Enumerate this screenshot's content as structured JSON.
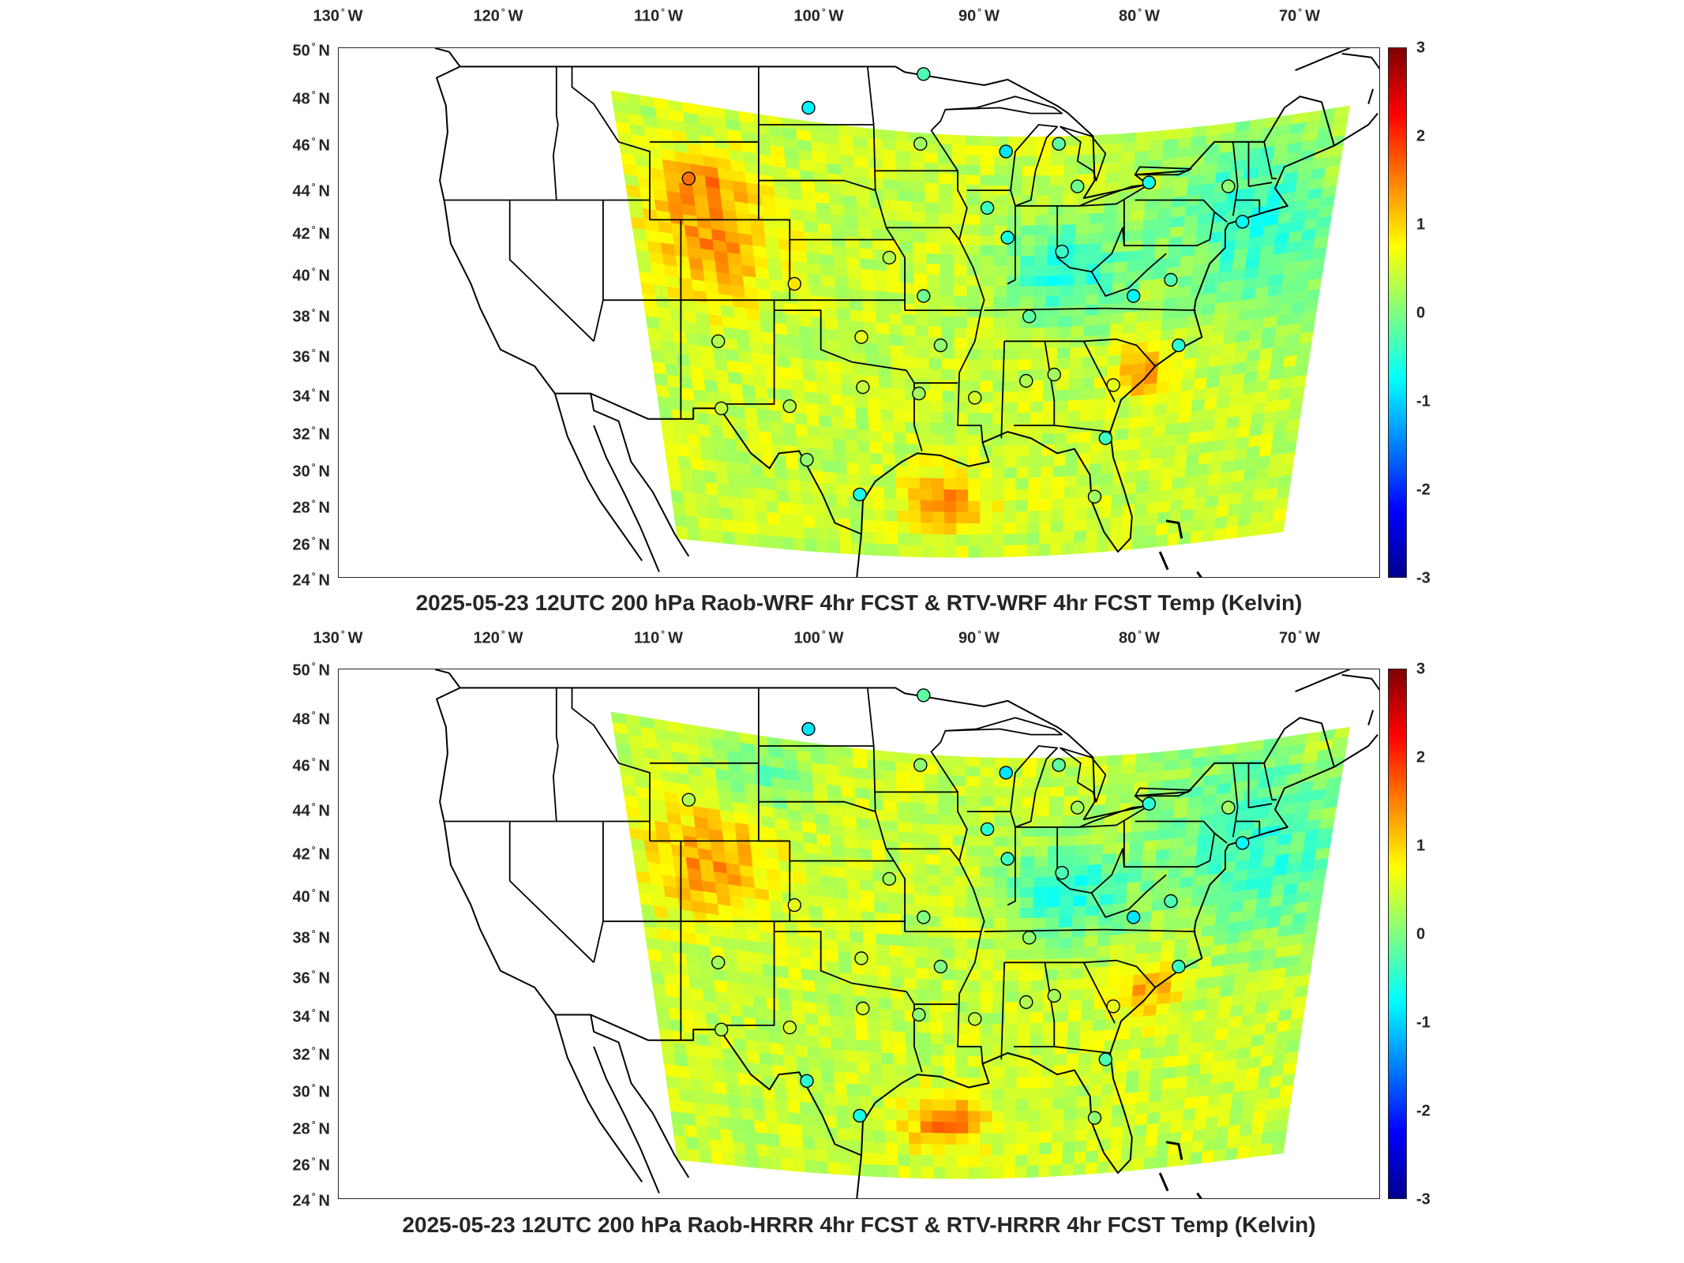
{
  "lon_labels": [
    {
      "deg": "130",
      "hem": "W"
    },
    {
      "deg": "120",
      "hem": "W"
    },
    {
      "deg": "110",
      "hem": "W"
    },
    {
      "deg": "100",
      "hem": "W"
    },
    {
      "deg": "90",
      "hem": "W"
    },
    {
      "deg": "80",
      "hem": "W"
    },
    {
      "deg": "70",
      "hem": "W"
    }
  ],
  "lat_labels": [
    {
      "deg": "50",
      "hem": "N"
    },
    {
      "deg": "48",
      "hem": "N"
    },
    {
      "deg": "46",
      "hem": "N"
    },
    {
      "deg": "44",
      "hem": "N"
    },
    {
      "deg": "42",
      "hem": "N"
    },
    {
      "deg": "40",
      "hem": "N"
    },
    {
      "deg": "38",
      "hem": "N"
    },
    {
      "deg": "36",
      "hem": "N"
    },
    {
      "deg": "34",
      "hem": "N"
    },
    {
      "deg": "32",
      "hem": "N"
    },
    {
      "deg": "30",
      "hem": "N"
    },
    {
      "deg": "28",
      "hem": "N"
    },
    {
      "deg": "26",
      "hem": "N"
    },
    {
      "deg": "24",
      "hem": "N"
    }
  ],
  "colorbar": {
    "ticks": [
      "3",
      "2",
      "1",
      "0",
      "-1",
      "-2",
      "-3"
    ],
    "range": [
      -3,
      3
    ],
    "colormap": "jet"
  },
  "panels": [
    {
      "title": "2025-05-23 12UTC 200 hPa Raob-WRF 4hr FCST & RTV-WRF 4hr FCST Temp (Kelvin)"
    },
    {
      "title": "2025-05-23 12UTC 200 hPa Raob-HRRR 4hr FCST & RTV-HRRR 4hr FCST Temp (Kelvin)"
    }
  ],
  "map_extent": {
    "lon": [
      -131,
      -64
    ],
    "lat": [
      24,
      50
    ]
  },
  "stations": [
    {
      "lon": -93.4,
      "lat": 48.6
    },
    {
      "lon": -100.8,
      "lat": 46.8
    },
    {
      "lon": -93.6,
      "lat": 44.9
    },
    {
      "lon": -88.1,
      "lat": 44.5
    },
    {
      "lon": -84.7,
      "lat": 44.9
    },
    {
      "lon": -83.5,
      "lat": 42.7
    },
    {
      "lon": -78.9,
      "lat": 42.9
    },
    {
      "lon": -73.8,
      "lat": 42.7
    },
    {
      "lon": -72.9,
      "lat": 40.9
    },
    {
      "lon": -108.5,
      "lat": 43.1
    },
    {
      "lon": -89.3,
      "lat": 41.6
    },
    {
      "lon": -88.0,
      "lat": 40.1
    },
    {
      "lon": -84.5,
      "lat": 39.4
    },
    {
      "lon": -95.6,
      "lat": 39.1
    },
    {
      "lon": -101.7,
      "lat": 37.8
    },
    {
      "lon": -93.4,
      "lat": 37.2
    },
    {
      "lon": -79.9,
      "lat": 37.2
    },
    {
      "lon": -77.5,
      "lat": 38.0
    },
    {
      "lon": -86.6,
      "lat": 36.2
    },
    {
      "lon": -106.6,
      "lat": 35.0
    },
    {
      "lon": -97.4,
      "lat": 35.2
    },
    {
      "lon": -92.3,
      "lat": 34.8
    },
    {
      "lon": -77.0,
      "lat": 34.8
    },
    {
      "lon": -85.0,
      "lat": 33.4
    },
    {
      "lon": -86.8,
      "lat": 33.1
    },
    {
      "lon": -97.3,
      "lat": 32.8
    },
    {
      "lon": -90.1,
      "lat": 32.3
    },
    {
      "lon": -81.2,
      "lat": 32.9
    },
    {
      "lon": -93.7,
      "lat": 32.5
    },
    {
      "lon": -106.4,
      "lat": 31.8
    },
    {
      "lon": -102.0,
      "lat": 31.9
    },
    {
      "lon": -100.9,
      "lat": 29.4
    },
    {
      "lon": -81.7,
      "lat": 30.4
    },
    {
      "lon": -97.5,
      "lat": 27.8
    },
    {
      "lon": -82.4,
      "lat": 27.7
    }
  ],
  "station_values": [
    [
      -0.3,
      -0.8,
      0.2,
      -0.9,
      -0.2,
      -0.1,
      -0.6,
      0.1,
      -0.7,
      1.6,
      -0.4,
      -0.6,
      -0.4,
      0.3,
      0.9,
      -0.1,
      -0.8,
      -0.3,
      -0.2,
      0.3,
      0.6,
      0.1,
      -0.5,
      0.2,
      0.3,
      0.4,
      0.5,
      0.6,
      0.2,
      0.4,
      0.3,
      0.1,
      -0.4,
      -0.6,
      0.2
    ],
    [
      -0.2,
      -0.9,
      0.1,
      -0.9,
      -0.2,
      0.2,
      -0.5,
      0.2,
      -0.7,
      0.3,
      -0.5,
      -0.4,
      -0.3,
      0.2,
      0.6,
      0.0,
      -0.9,
      -0.3,
      0.1,
      0.2,
      0.4,
      0.0,
      -0.4,
      0.2,
      0.3,
      0.5,
      0.4,
      0.6,
      0.1,
      0.3,
      0.5,
      -0.5,
      -0.3,
      -0.6,
      0.1
    ]
  ]
}
